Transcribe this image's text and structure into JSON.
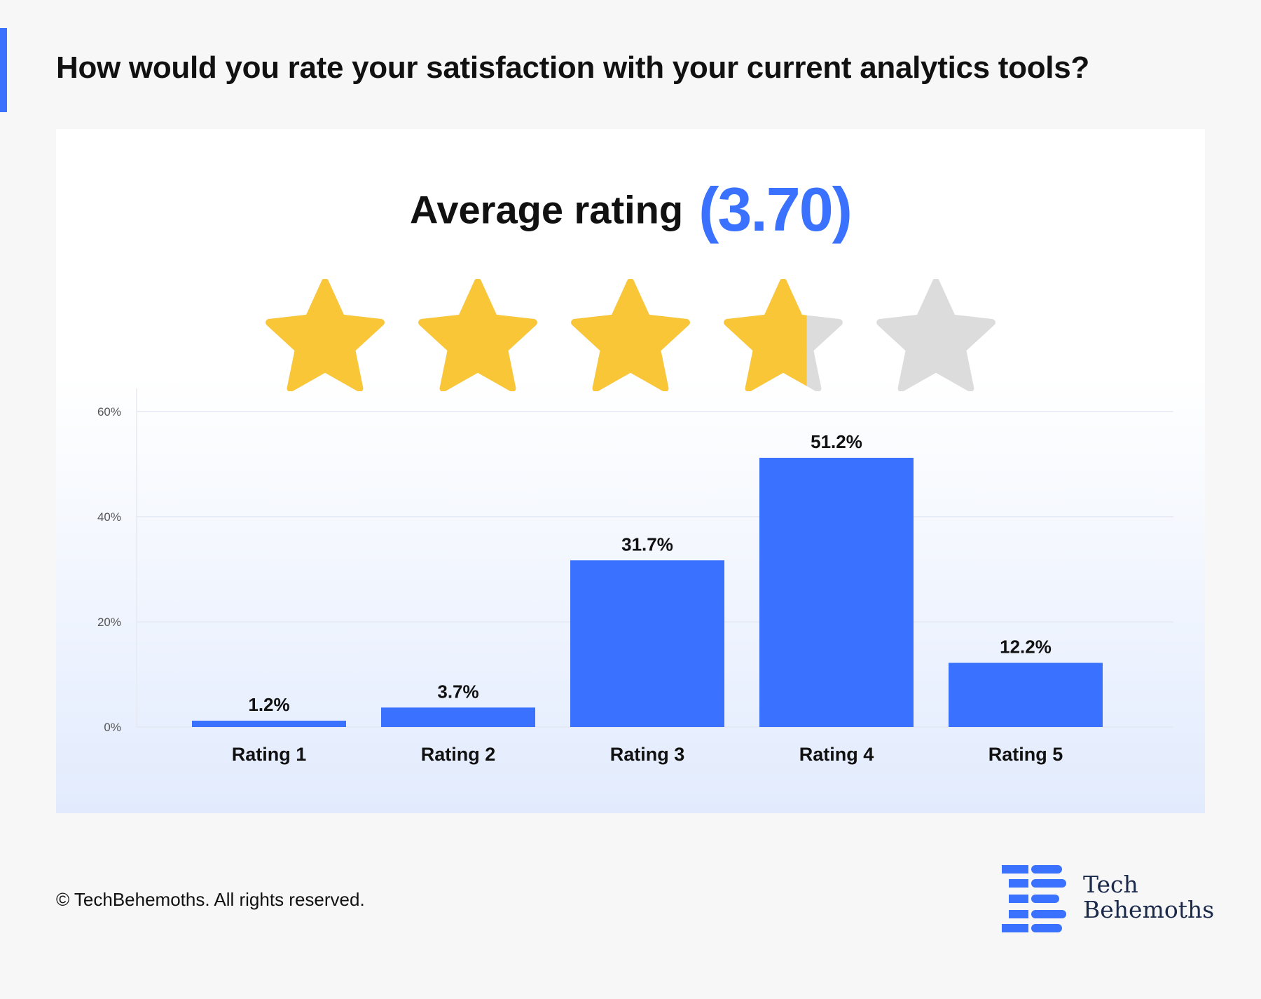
{
  "title": "How would you rate your satisfaction with your current analytics tools?",
  "average": {
    "label": "Average rating",
    "value_text": "(3.70)",
    "rating": 3.7,
    "max_stars": 5
  },
  "colors": {
    "accent": "#3a72ff",
    "star_filled": "#f9c638",
    "star_empty": "#dcdcdc",
    "bar": "#3a72ff"
  },
  "chart_data": {
    "type": "bar",
    "categories": [
      "Rating 1",
      "Rating 2",
      "Rating 3",
      "Rating 4",
      "Rating 5"
    ],
    "values": [
      1.2,
      3.7,
      31.7,
      51.2,
      12.2
    ],
    "value_labels": [
      "1.2%",
      "3.7%",
      "31.7%",
      "51.2%",
      "12.2%"
    ],
    "title": "",
    "xlabel": "",
    "ylabel": "",
    "ylim": [
      0,
      60
    ],
    "yticks": [
      0,
      20,
      40,
      60
    ],
    "ytick_labels": [
      "0%",
      "20%",
      "40%",
      "60%"
    ],
    "grid": true
  },
  "footer": {
    "copyright": "© TechBehemoths. All rights reserved."
  },
  "logo": {
    "line1": "Tech",
    "line2": "Behemoths",
    "icon": "tb-logo-icon"
  }
}
